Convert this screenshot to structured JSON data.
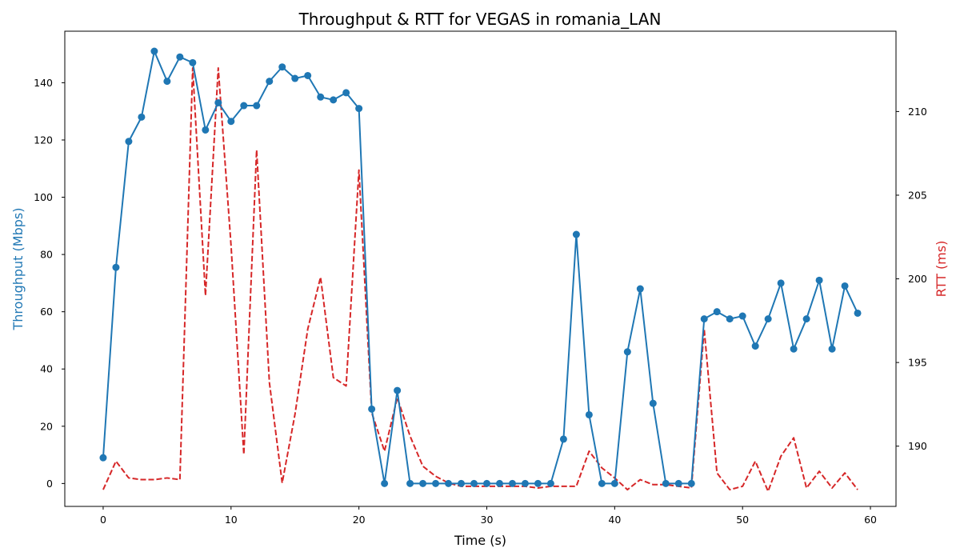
{
  "chart_data": {
    "type": "line",
    "title": "Throughput & RTT for VEGAS in romania_LAN",
    "xlabel": "Time (s)",
    "ylabel": "Throughput (Mbps)",
    "y2label": "RTT (ms)",
    "xlim": [
      -3,
      62
    ],
    "ylim": [
      -8,
      158
    ],
    "y2lim": [
      186.4,
      214.8
    ],
    "xticks": [
      0,
      10,
      20,
      30,
      40,
      50,
      60
    ],
    "yticks": [
      0,
      20,
      40,
      60,
      80,
      100,
      120,
      140
    ],
    "y2ticks": [
      190,
      195,
      200,
      205,
      210
    ],
    "grid": false,
    "colors": {
      "throughput": "#1f77b4",
      "rtt": "#d62728"
    },
    "series": [
      {
        "axis": "left",
        "style": "solid-markers",
        "x": [
          0,
          1,
          2,
          3,
          4,
          5,
          6,
          7,
          8,
          9,
          10,
          11,
          12,
          13,
          14,
          15,
          16,
          17,
          18,
          19,
          20,
          21,
          22,
          23,
          24,
          25,
          26,
          27,
          28,
          29,
          30,
          31,
          32,
          33,
          34,
          35,
          36,
          37,
          38,
          39,
          40,
          41,
          42,
          43,
          44,
          45,
          46,
          47,
          48,
          49,
          50,
          51,
          52,
          53,
          54,
          55,
          56,
          57,
          58,
          59
        ],
        "values": [
          9,
          75.5,
          119.5,
          128,
          151,
          140.5,
          149,
          147,
          123.5,
          133,
          126.5,
          132,
          132,
          140.5,
          145.5,
          141.5,
          142.5,
          135,
          134,
          136.5,
          131,
          26,
          0,
          32.5,
          0,
          0,
          0,
          0,
          0,
          0,
          0,
          0,
          0,
          0,
          0,
          0,
          15.5,
          87,
          24,
          0,
          0,
          46,
          68,
          28,
          0,
          0,
          0,
          57.5,
          60,
          57.5,
          58.5,
          48,
          57.5,
          70,
          47,
          57.5,
          71,
          47,
          69,
          59.5
        ]
      },
      {
        "axis": "right",
        "style": "dashed",
        "x": [
          0,
          1,
          2,
          3,
          4,
          5,
          6,
          7,
          8,
          9,
          10,
          11,
          12,
          13,
          14,
          15,
          16,
          17,
          18,
          19,
          20,
          21,
          22,
          23,
          24,
          25,
          26,
          27,
          28,
          29,
          30,
          31,
          32,
          33,
          34,
          35,
          36,
          37,
          38,
          39,
          40,
          41,
          42,
          43,
          44,
          45,
          46,
          47,
          48,
          49,
          50,
          51,
          52,
          53,
          54,
          55,
          56,
          57,
          58,
          59
        ],
        "values": [
          187.4,
          189.1,
          188.1,
          188.0,
          188.0,
          188.1,
          188.0,
          212.6,
          199.0,
          212.6,
          202.0,
          189.5,
          207.7,
          193.8,
          187.8,
          191.9,
          197.0,
          200.1,
          194.1,
          193.6,
          206.5,
          192.0,
          189.7,
          192.9,
          190.6,
          188.8,
          188.2,
          187.8,
          187.6,
          187.6,
          187.6,
          187.6,
          187.6,
          187.6,
          187.5,
          187.6,
          187.6,
          187.6,
          189.7,
          188.7,
          188.1,
          187.4,
          188.0,
          187.7,
          187.7,
          187.6,
          187.5,
          197.0,
          188.4,
          187.4,
          187.6,
          189.1,
          187.3,
          189.4,
          190.5,
          187.5,
          188.5,
          187.5,
          188.4,
          187.4
        ]
      }
    ]
  }
}
